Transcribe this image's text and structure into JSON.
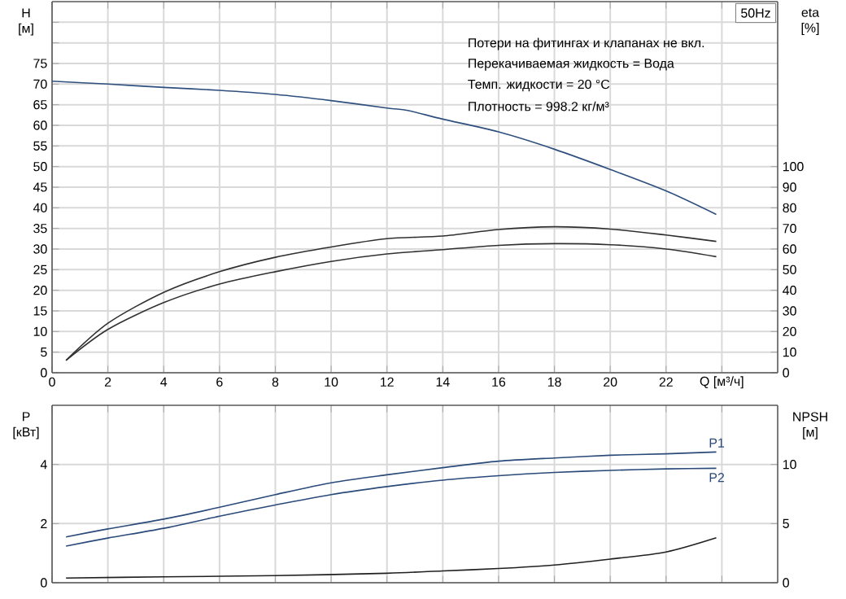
{
  "chart_data": [
    {
      "type": "line",
      "title": "50Hz",
      "xlabel": "Q [м³/ч]",
      "ylabel": "H [м]",
      "y2label": "eta [%]",
      "annotations": [
        "Потери на фитингах и клапанах не вкл.",
        "Перекачиваемая жидкость = Вода",
        "Темп. жидкости = 20 °C",
        "Плотность = 998.2 кг/м³"
      ],
      "xlim": [
        0,
        26
      ],
      "xticks": [
        0,
        2,
        4,
        6,
        8,
        10,
        12,
        14,
        16,
        18,
        20,
        22,
        {
          "value": 24,
          "label": null
        }
      ],
      "ylim": [
        0,
        90
      ],
      "yticks": [
        0,
        5,
        10,
        15,
        20,
        25,
        30,
        35,
        40,
        45,
        50,
        55,
        60,
        65,
        70,
        75,
        {
          "value": 80,
          "label": null
        },
        {
          "value": 85,
          "label": null
        }
      ],
      "y2lim": [
        0,
        180
      ],
      "y2ticks": [
        0,
        10,
        20,
        30,
        40,
        50,
        60,
        70,
        80,
        90,
        100
      ],
      "grid": true,
      "marker": "none",
      "series": [
        {
          "color": "#2e4f7e",
          "x": [
            0,
            2,
            4,
            6,
            8,
            10,
            12,
            12.75,
            14,
            16,
            18,
            20,
            22,
            23.8
          ],
          "values": [
            70.7,
            70,
            69.2,
            68.5,
            67.5,
            66,
            64.2,
            63.6,
            61.5,
            58.4,
            54.2,
            49.3,
            44.1,
            38.4
          ]
        },
        {
          "color": "#303030",
          "axis": "y2",
          "x": [
            0.5,
            2,
            4,
            6,
            8,
            10,
            12,
            14,
            16,
            18,
            20,
            22,
            23.8
          ],
          "values": [
            6,
            24,
            39,
            49,
            56,
            61,
            65,
            66.3,
            69.5,
            70.8,
            69.7,
            66.8,
            63.7
          ]
        },
        {
          "color": "#303030",
          "axis": "y2",
          "x": [
            0.5,
            2,
            4,
            6,
            8,
            10,
            12,
            14,
            16,
            18,
            20,
            22,
            23.8
          ],
          "values": [
            6,
            21,
            34,
            43,
            49,
            54,
            57.6,
            59.7,
            61.8,
            62.6,
            62.1,
            60,
            56.3
          ]
        }
      ]
    },
    {
      "type": "line",
      "ylabel": "P [кВт]",
      "y2label": "NPSH [м]",
      "tick_labels": "y",
      "xlim": [
        0,
        26
      ],
      "xticks": [
        0,
        2,
        4,
        6,
        8,
        10,
        12,
        14,
        16,
        18,
        20,
        22,
        24
      ],
      "ylim": [
        0,
        6
      ],
      "yticks": [
        0,
        2,
        4
      ],
      "y2lim": [
        0,
        15
      ],
      "y2ticks": [
        0,
        5,
        10
      ],
      "grid": true,
      "marker": "none",
      "series": [
        {
          "name": "P1",
          "color": "#2a4a7a",
          "x": [
            0.5,
            2,
            4,
            6,
            8,
            10,
            12,
            14,
            16,
            18,
            20,
            22,
            23.8
          ],
          "values": [
            1.55,
            1.82,
            2.15,
            2.55,
            2.98,
            3.38,
            3.65,
            3.89,
            4.11,
            4.22,
            4.31,
            4.36,
            4.42
          ]
        },
        {
          "name": "P2",
          "color": "#2a4a7a",
          "x": [
            0.5,
            2,
            4,
            6,
            8,
            10,
            12,
            14,
            16,
            18,
            20,
            22,
            23.8
          ],
          "values": [
            1.24,
            1.51,
            1.84,
            2.25,
            2.63,
            2.98,
            3.25,
            3.47,
            3.62,
            3.73,
            3.8,
            3.85,
            3.87
          ]
        },
        {
          "color": "#202020",
          "axis": "y2",
          "x": [
            0.5,
            4,
            8,
            12,
            14,
            16,
            18,
            20,
            22,
            23.8
          ],
          "values": [
            0.4,
            0.5,
            0.6,
            0.8,
            1,
            1.2,
            1.5,
            2,
            2.6,
            3.8
          ]
        }
      ]
    }
  ]
}
